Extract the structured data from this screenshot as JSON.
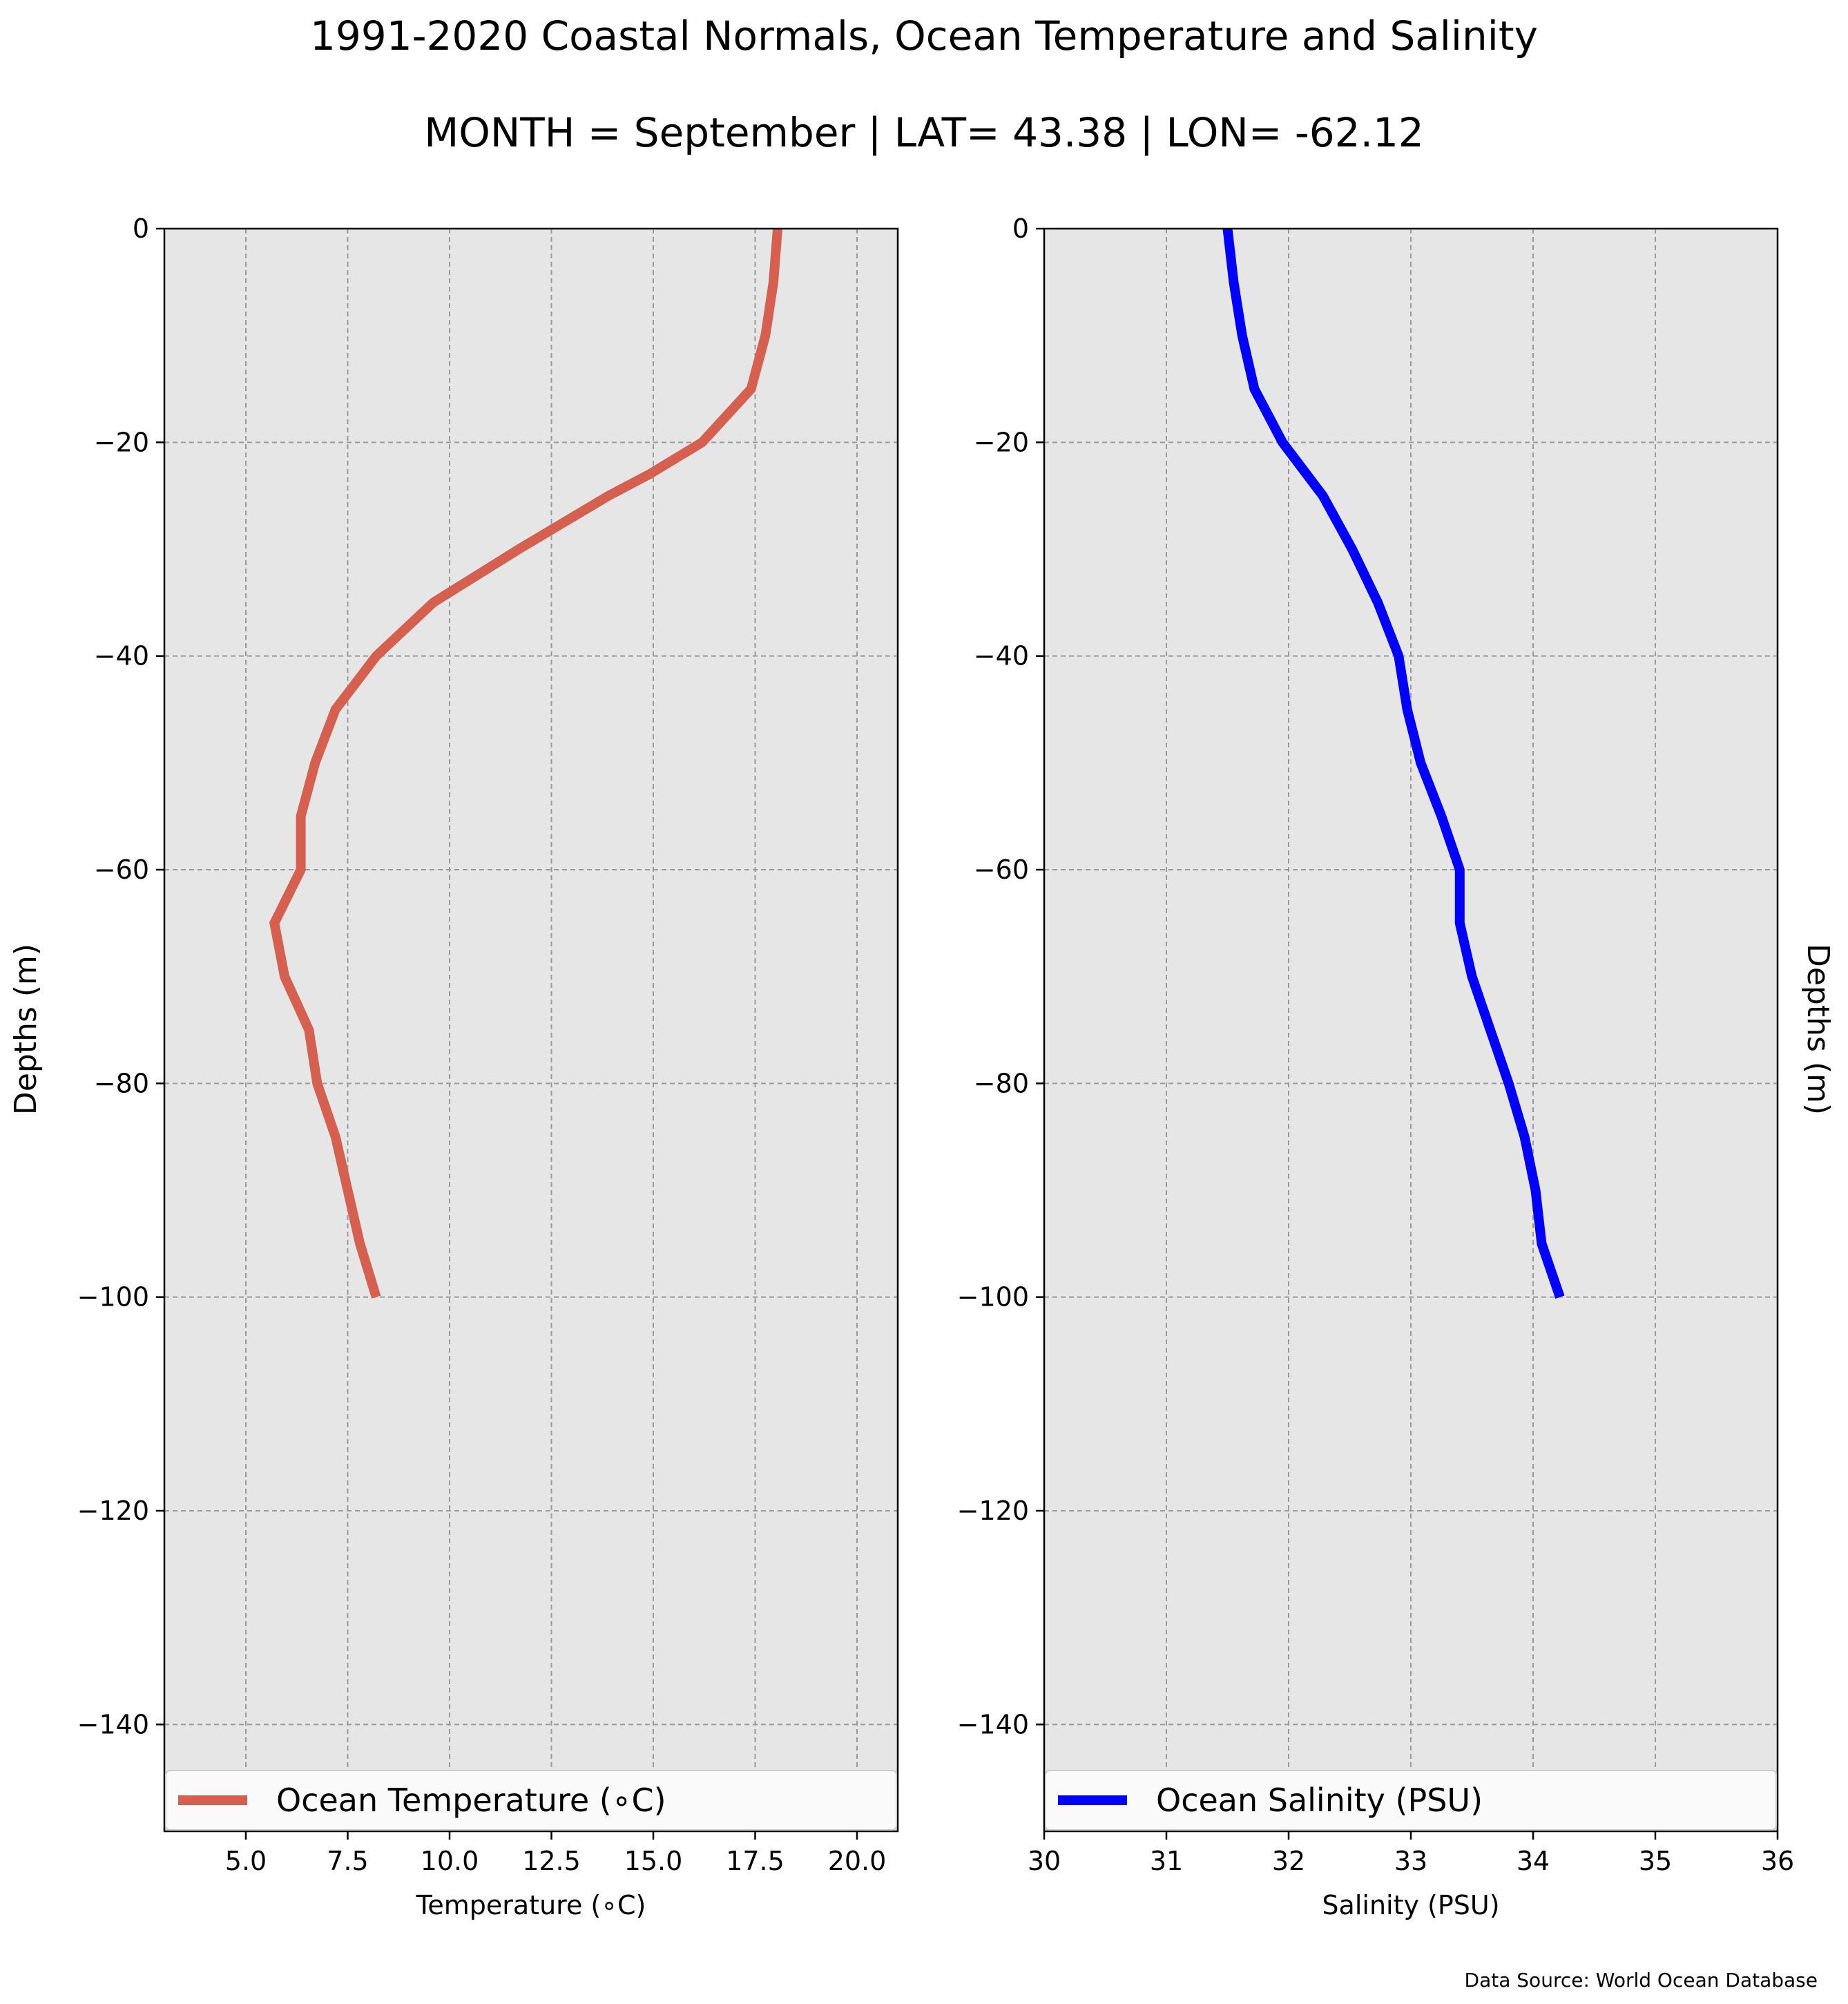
{
  "figure": {
    "title": "1991-2020 Coastal Normals, Ocean Temperature and Salinity",
    "subtitle": "MONTH = September | LAT= 43.38 | LON= -62.12",
    "source": "Data Source: World Ocean Database",
    "plot_background": "#e6e6e6"
  },
  "chart_data": [
    {
      "type": "line",
      "xlabel": "Temperature (∘C)",
      "ylabel": "Depths (m)",
      "xlim": [
        3.0,
        21.0
      ],
      "ylim": [
        -150,
        0
      ],
      "x_ticks": [
        5.0,
        7.5,
        10.0,
        12.5,
        15.0,
        17.5,
        20.0
      ],
      "x_tick_labels": [
        "5.0",
        "7.5",
        "10.0",
        "12.5",
        "15.0",
        "17.5",
        "20.0"
      ],
      "y_ticks": [
        0,
        -20,
        -40,
        -60,
        -80,
        -100,
        -120,
        -140
      ],
      "y_tick_labels": [
        "0",
        "−20",
        "−40",
        "−60",
        "−80",
        "−100",
        "−120",
        "−140"
      ],
      "grid": true,
      "legend_position": "bottom",
      "series": [
        {
          "name": "Ocean Temperature (∘C)",
          "color": "#d5604f",
          "x": [
            18.05,
            17.95,
            17.75,
            17.4,
            16.2,
            14.9,
            13.9,
            11.7,
            9.6,
            8.2,
            7.2,
            6.7,
            6.35,
            6.35,
            5.7,
            5.95,
            6.55,
            6.75,
            7.2,
            7.5,
            7.8,
            8.2
          ],
          "y": [
            0,
            -5,
            -10,
            -15,
            -20,
            -23,
            -25,
            -30,
            -35,
            -40,
            -45,
            -50,
            -55,
            -60,
            -65,
            -70,
            -75,
            -80,
            -85,
            -90,
            -95,
            -100
          ]
        }
      ]
    },
    {
      "type": "line",
      "xlabel": "Salinity (PSU)",
      "ylabel": "Depths (m)",
      "xlim": [
        30,
        36
      ],
      "ylim": [
        -150,
        0
      ],
      "x_ticks": [
        30,
        31,
        32,
        33,
        34,
        35,
        36
      ],
      "x_tick_labels": [
        "30",
        "31",
        "32",
        "33",
        "34",
        "35",
        "36"
      ],
      "y_ticks": [
        0,
        -20,
        -40,
        -60,
        -80,
        -100,
        -120,
        -140
      ],
      "y_tick_labels": [
        "0",
        "−20",
        "−40",
        "−60",
        "−80",
        "−100",
        "−120",
        "−140"
      ],
      "grid": true,
      "legend_position": "bottom",
      "series": [
        {
          "name": "Ocean Salinity (PSU)",
          "color": "#0000ff",
          "x": [
            31.5,
            31.55,
            31.62,
            31.72,
            31.95,
            32.28,
            32.52,
            32.73,
            32.9,
            32.97,
            33.08,
            33.25,
            33.4,
            33.4,
            33.5,
            33.65,
            33.8,
            33.93,
            34.02,
            34.07,
            34.22
          ],
          "y": [
            0,
            -5,
            -10,
            -15,
            -20,
            -25,
            -30,
            -35,
            -40,
            -45,
            -50,
            -55,
            -60,
            -65,
            -70,
            -75,
            -80,
            -85,
            -90,
            -95,
            -100
          ]
        }
      ]
    }
  ]
}
